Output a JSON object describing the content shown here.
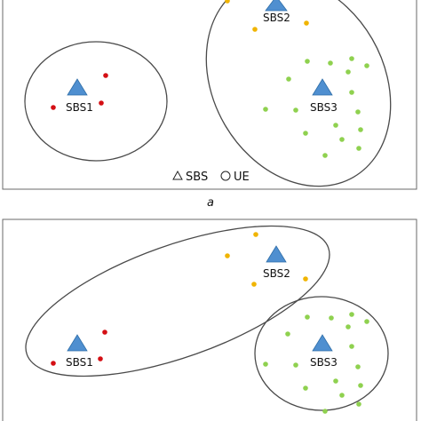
{
  "colors": {
    "sbs": "#4f8fd0",
    "ue_red": "#d40f14",
    "ue_yellow": "#f0b400",
    "ue_green": "#8fd14f",
    "outline": "#4a4a4a"
  },
  "panel_a": {
    "sbs_labels": [
      "SBS1",
      "SBS2",
      "SBS3"
    ],
    "legend": {
      "sbs": "SBS",
      "ue": "UE",
      "sbs_icon": "triangle-icon",
      "ue_icon": "circle-icon"
    },
    "caption": "a"
  },
  "panel_b": {
    "sbs_labels": [
      "SBS1",
      "SBS2",
      "SBS3"
    ]
  }
}
